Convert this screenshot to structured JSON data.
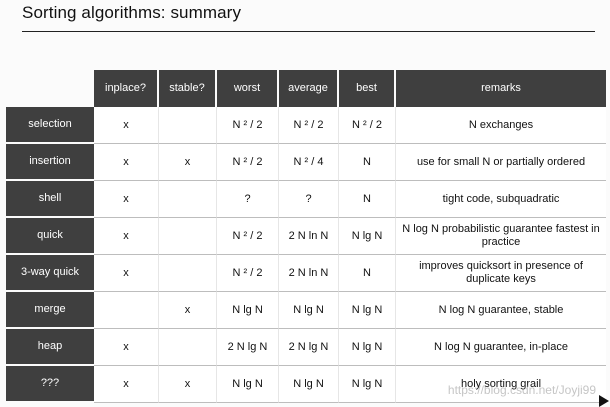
{
  "title": "Sorting algorithms: summary",
  "headers": {
    "inplace": "inplace?",
    "stable": "stable?",
    "worst": "worst",
    "average": "average",
    "best": "best",
    "remarks": "remarks"
  },
  "rows": [
    {
      "name": "selection",
      "inplace": "x",
      "stable": "",
      "worst": "N ² / 2",
      "average": "N ² / 2",
      "best": "N ² / 2",
      "remarks": "N exchanges"
    },
    {
      "name": "insertion",
      "inplace": "x",
      "stable": "x",
      "worst": "N ² / 2",
      "average": "N ² / 4",
      "best": "N",
      "remarks": "use for small N or partially ordered"
    },
    {
      "name": "shell",
      "inplace": "x",
      "stable": "",
      "worst": "?",
      "average": "?",
      "best": "N",
      "remarks": "tight code, subquadratic"
    },
    {
      "name": "quick",
      "inplace": "x",
      "stable": "",
      "worst": "N ² / 2",
      "average": "2 N ln N",
      "best": "N lg N",
      "remarks": "N log N  probabilistic guarantee fastest in practice"
    },
    {
      "name": "3-way quick",
      "inplace": "x",
      "stable": "",
      "worst": "N ² / 2",
      "average": "2 N ln N",
      "best": "N",
      "remarks": "improves quicksort in presence of duplicate keys"
    },
    {
      "name": "merge",
      "inplace": "",
      "stable": "x",
      "worst": "N lg N",
      "average": "N lg N",
      "best": "N lg N",
      "remarks": "N log N  guarantee, stable"
    },
    {
      "name": "heap",
      "inplace": "x",
      "stable": "",
      "worst": "2 N lg N",
      "average": "2 N lg N",
      "best": "N lg N",
      "remarks": "N log N  guarantee, in-place"
    },
    {
      "name": "???",
      "inplace": "x",
      "stable": "x",
      "worst": "N lg N",
      "average": "N lg N",
      "best": "N lg N",
      "remarks": "holy sorting grail"
    }
  ],
  "watermark": "https://blog.csdn.net/Joyji99"
}
